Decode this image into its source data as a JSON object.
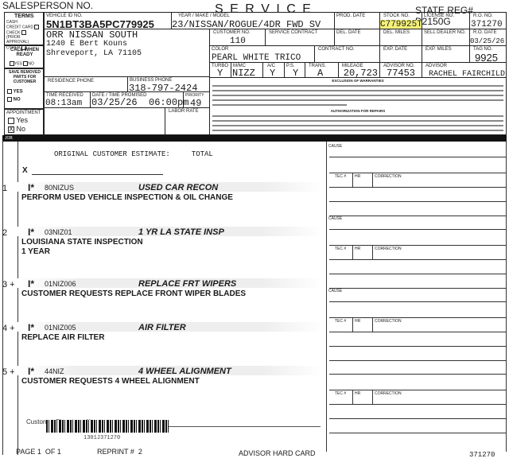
{
  "header": {
    "salesperson_label": "SALESPERSON NO.",
    "title": "S E R V I C E",
    "state_reg": "STATE REG# D2150G"
  },
  "terms": {
    "title": "TERMS",
    "options": [
      "CASH",
      "CREDIT CARD",
      "CHECK",
      "(PRIOR APPROVAL)",
      "OTHER"
    ],
    "call_when_ready": "CALL WHEN READY",
    "yes": "YES",
    "no": "NO",
    "save_parts": "SAVE REMOVED PARTS FOR CUSTOMER",
    "appointment": "APPOINTMENT",
    "appt_yes": "Yes",
    "appt_no": "No",
    "appt_mark": "X"
  },
  "vehicle": {
    "vin_label": "VEHICLE ID No.",
    "vin": "5N1BT3BA5PC779925",
    "ymm_label": "YEAR / MAKE / MODEL",
    "ymm": "23/NISSAN/ROGUE/4DR FWD SV",
    "prod_date_label": "PROD. DATE",
    "stock_label": "STOCK No.",
    "stock": "C779925T",
    "license_label": "LICENSE No.",
    "ro_label": "R.O. No.",
    "ro": "371270",
    "cust_no_label": "CUSTOMER No.",
    "cust_no": "110",
    "service_contract_label": "SERVICE CONTRACT",
    "del_date_label": "DEL. DATE",
    "del_miles_label": "DEL. MILES",
    "sell_dealer_label": "SELL DEALER No.",
    "ro_date_label": "R.O. DATE",
    "ro_date": "03/25/26",
    "color_label": "COLOR",
    "color": "PEARL WHITE TRICO",
    "contract_label": "CONTRACT No.",
    "exp_date_label": "EXP. DATE",
    "exp_miles_label": "EXP. MILES",
    "tag_label": "TAG No.",
    "tag": "9925",
    "turbo_label": "TURBO",
    "turbo": "Y",
    "mmc_label": "M/MC",
    "mmc": "NIZZ",
    "ac_label": "A/C",
    "ac": "Y",
    "ps_label": "P.S.",
    "ps": "Y",
    "trans_label": "TRANS.",
    "trans": "A",
    "mileage_label": "MILEAGE",
    "mileage": "20,723",
    "advisor_no_label": "ADVISOR No.",
    "advisor_no": "77453",
    "advisor_label": "ADVISOR",
    "advisor": "RACHEL FAIRCHILD"
  },
  "customer": {
    "name": "ORR NISSAN SOUTH",
    "address1": "1240 E Bert Kouns",
    "address2": "Shreveport, LA 71105",
    "res_phone_label": "RESIDENCE PHONE",
    "bus_phone_label": "BUSINESS PHONE",
    "bus_phone": "318-797-2424",
    "time_received_label": "TIME RECEIVED",
    "time_received": "08:13am",
    "promised_label": "DATE / TIME PROMISED",
    "promised": "03/25/26  06:00pm",
    "priority_label": "PRIORITY",
    "priority": "49",
    "labor_rate_label": "LABOR RATE"
  },
  "legal": {
    "warranty_title": "EXCLUSION OF WARRANTIES",
    "auth_title": "AUTHORIZATION FOR REPAIRS"
  },
  "job_bar": "JOB",
  "estimate": {
    "label": "ORIGINAL CUSTOMER ESTIMATE:     TOTAL",
    "x": "X"
  },
  "jobs": [
    {
      "num": "1",
      "code": "I*",
      "op": "80NIZUS",
      "title": "USED CAR RECON",
      "desc": "PERFORM USED VEHICLE INSPECTION & OIL CHANGE"
    },
    {
      "num": "2",
      "code": "I*",
      "op": "03NIZ01",
      "title": "1 YR LA STATE INSP",
      "desc": "LOUISIANA STATE INSPECTION",
      "desc2": "1 YEAR"
    },
    {
      "num": "3 +",
      "code": "I*",
      "op": "01NIZ006",
      "title": "REPLACE FRT WIPERS",
      "desc": "CUSTOMER REQUESTS REPLACE FRONT WIPER BLADES"
    },
    {
      "num": "4 +",
      "code": "I*",
      "op": "01NIZ005",
      "title": "AIR FILTER",
      "desc": "REPLACE AIR FILTER"
    },
    {
      "num": "5 +",
      "code": "I*",
      "op": "44NIZ",
      "title": "4 WHEEL ALIGNMENT",
      "desc": "CUSTOMER REQUESTS 4 WHEEL ALIGNMENT"
    }
  ],
  "repair": {
    "cause": "CAUSE",
    "tec": "TEC #",
    "hr": "HR",
    "correction": "CORRECTION"
  },
  "footer": {
    "signature": "Customer Signature  X",
    "barcode_text": "1301J371270",
    "page": "PAGE 1  OF 1",
    "reprint": "REPRINT #  2",
    "card": "ADVISOR HARD CARD",
    "ro": "371270"
  },
  "colors": {
    "highlight": "#f3f07a",
    "bar": "#111111"
  }
}
